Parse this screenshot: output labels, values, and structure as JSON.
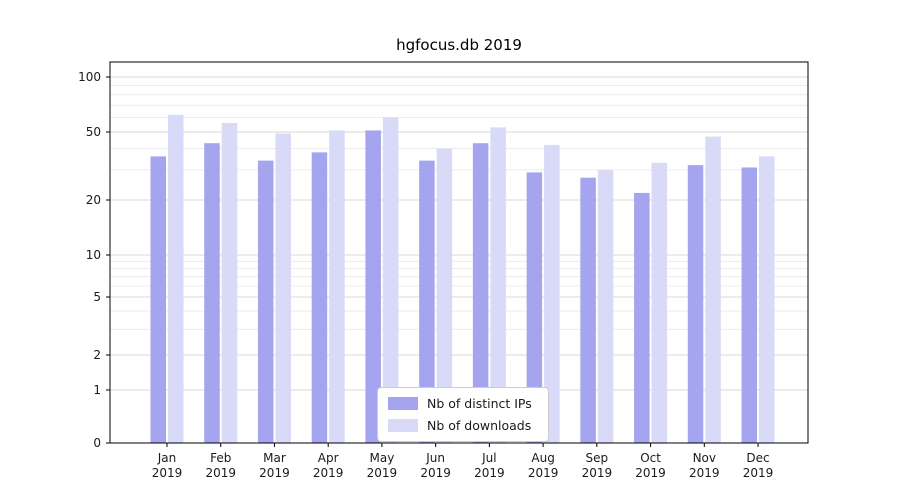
{
  "chart_data": {
    "type": "bar",
    "title": "hgfocus.db 2019",
    "categories": [
      "Jan 2019",
      "Feb 2019",
      "Mar 2019",
      "Apr 2019",
      "May 2019",
      "Jun 2019",
      "Jul 2019",
      "Aug 2019",
      "Sep 2019",
      "Oct 2019",
      "Nov 2019",
      "Dec 2019"
    ],
    "month_labels": [
      "Jan",
      "Feb",
      "Mar",
      "Apr",
      "May",
      "Jun",
      "Jul",
      "Aug",
      "Sep",
      "Oct",
      "Nov",
      "Dec"
    ],
    "year_label": "2019",
    "series": [
      {
        "name": "Nb of distinct IPs",
        "color": "#a4a4ef",
        "values": [
          36,
          43,
          34,
          38,
          51,
          34,
          43,
          29,
          27,
          22,
          32,
          31
        ]
      },
      {
        "name": "Nb of downloads",
        "color": "#d9d9f8",
        "values": [
          62,
          56,
          49,
          51,
          60,
          40,
          53,
          42,
          30,
          33,
          47,
          36
        ]
      }
    ],
    "yscale": "symlog",
    "yticks": [
      0,
      1,
      2,
      5,
      10,
      20,
      50,
      100
    ],
    "minor_gridlines": [
      3,
      4,
      6,
      7,
      8,
      9,
      30,
      40,
      60,
      70,
      80,
      90
    ],
    "ylim": [
      0,
      120
    ],
    "xlabel": "",
    "ylabel": "",
    "grid": true,
    "legend_position": "lower center"
  }
}
